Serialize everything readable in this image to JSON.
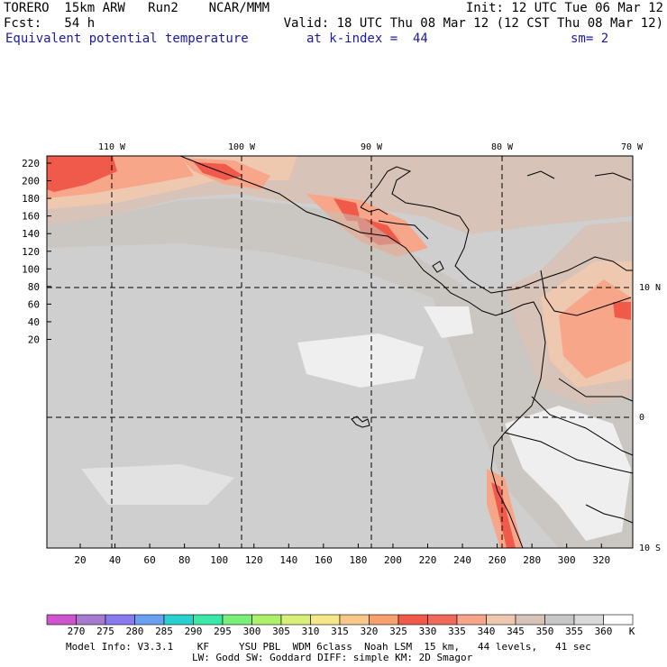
{
  "header": {
    "line1_left": "TORERO  15km ARW   Run2    NCAR/MMM",
    "line1_right": "Init: 12 UTC Tue 06 Mar 12",
    "line2_left": "Fcst:   54 h",
    "line2_right": "Valid: 18 UTC Thu 08 Mar 12 (12 CST Thu 08 Mar 12)",
    "line3_field": "Equivalent potential temperature",
    "line3_index": "at k-index =  44",
    "line3_sm": "sm= 2"
  },
  "map": {
    "top_lon_labels": [
      "110 W",
      "100 W",
      "90 W",
      "80 W",
      "70 W"
    ],
    "right_lat_labels": [
      "10 N",
      "0",
      "10 S"
    ],
    "y_grid_labels": [
      "220",
      "200",
      "180",
      "160",
      "140",
      "120",
      "100",
      "80",
      "60",
      "40",
      "20"
    ],
    "x_grid_labels": [
      "20",
      "40",
      "60",
      "80",
      "100",
      "120",
      "140",
      "160",
      "180",
      "200",
      "220",
      "240",
      "260",
      "280",
      "300",
      "320"
    ],
    "colors": {
      "ocean_gray": "#cfcfcf",
      "mid_gray": "#c7bfb7",
      "tan": "#d7c3b7",
      "peach": "#efc8b0",
      "salmon": "#f7a68a",
      "red": "#ef5a4a",
      "light": "#efefef"
    }
  },
  "colorbar": {
    "labels": [
      "270",
      "275",
      "280",
      "285",
      "290",
      "295",
      "300",
      "305",
      "310",
      "315",
      "320",
      "325",
      "330",
      "335",
      "340",
      "345",
      "350",
      "355",
      "360"
    ],
    "unit": "K",
    "colors": [
      "#cf55cf",
      "#a77acf",
      "#8a7aef",
      "#6aa0ef",
      "#2ad0cf",
      "#3ae8a8",
      "#7af07a",
      "#aef06a",
      "#d8f07a",
      "#f7e78a",
      "#f7c88a",
      "#f7a070",
      "#ef5a4a",
      "#ef6a5a",
      "#f7a68a",
      "#efc8b0",
      "#d7c3b7",
      "#c7c7c7",
      "#dadada",
      "#ffffff"
    ]
  },
  "footer": {
    "line1": "Model Info: V3.3.1    KF     YSU PBL  WDM 6class  Noah LSM  15 km,   44 levels,   41 sec",
    "line2": "LW: Godd SW: Goddard DIFF: simple KM: 2D Smagor"
  }
}
